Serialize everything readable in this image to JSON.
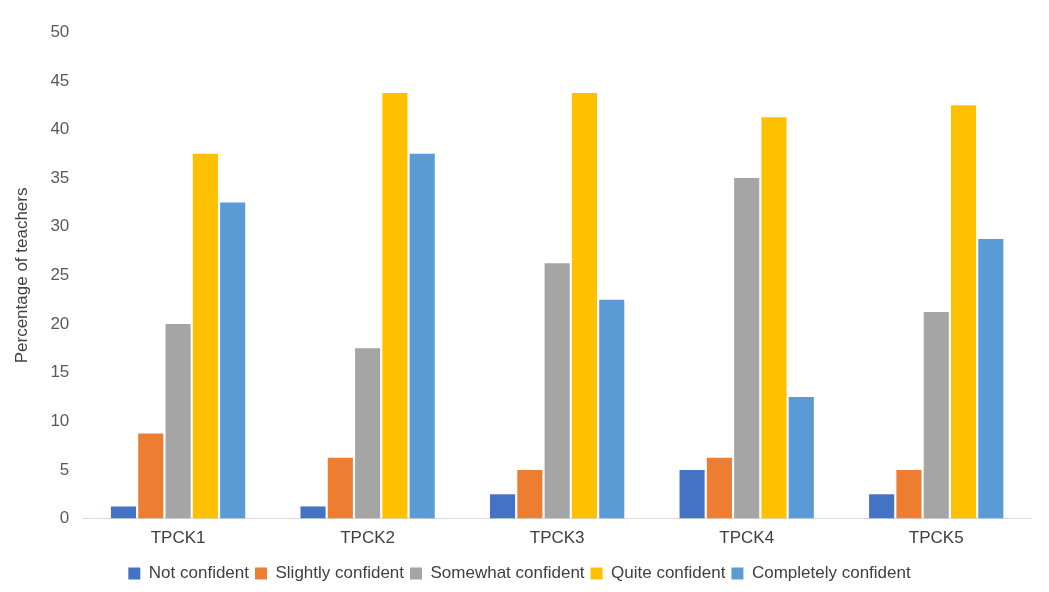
{
  "chart_data": {
    "type": "bar",
    "ylabel": "Percentage of teachers",
    "categories": [
      "TPCK1",
      "TPCK2",
      "TPCK3",
      "TPCK4",
      "TPCK5"
    ],
    "series": [
      {
        "name": "Not confident",
        "color": "#4472c4",
        "values": [
          1.25,
          1.25,
          2.5,
          5,
          2.5
        ]
      },
      {
        "name": "Slightly confident",
        "color": "#ed7d31",
        "values": [
          8.75,
          6.25,
          5,
          6.25,
          5
        ]
      },
      {
        "name": "Somewhat confident",
        "color": "#a5a5a5",
        "values": [
          20,
          17.5,
          26.25,
          35,
          21.25
        ]
      },
      {
        "name": "Quite confident",
        "color": "#ffc000",
        "values": [
          37.5,
          43.75,
          43.75,
          41.25,
          42.5
        ]
      },
      {
        "name": "Completely confident",
        "color": "#5b9bd5",
        "values": [
          32.5,
          37.5,
          22.5,
          12.5,
          28.75
        ]
      }
    ],
    "ylim": [
      0,
      50
    ],
    "yticks": [
      0,
      5,
      10,
      15,
      20,
      25,
      30,
      35,
      40,
      45,
      50
    ],
    "grid": false,
    "legend": "bottom"
  }
}
